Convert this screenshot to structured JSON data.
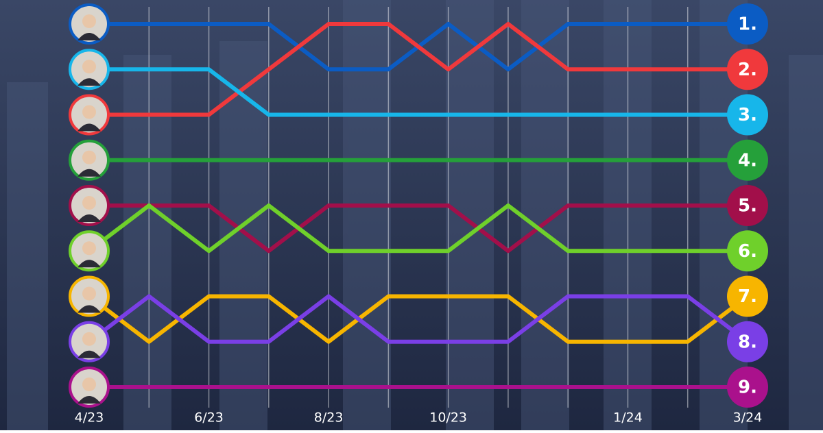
{
  "chart_data": {
    "type": "bump",
    "categories": [
      "4/23",
      null,
      "6/23",
      null,
      "8/23",
      null,
      "10/23",
      null,
      null,
      "1/24",
      null,
      "3/24"
    ],
    "ylim": [
      9,
      1
    ],
    "yticks": [
      {
        "value": 1,
        "label": "1."
      },
      {
        "value": 2,
        "label": "2."
      },
      {
        "value": 3,
        "label": "3."
      },
      {
        "value": 4,
        "label": "4."
      },
      {
        "value": 5,
        "label": "5."
      },
      {
        "value": 6,
        "label": "6."
      },
      {
        "value": 7,
        "label": "7."
      },
      {
        "value": 8,
        "label": "8."
      },
      {
        "value": 9,
        "label": "9."
      }
    ],
    "grid": true,
    "series": [
      {
        "color": "#0b5cc4",
        "values": [
          1,
          1,
          1,
          1,
          2,
          2,
          1,
          2,
          1,
          1,
          1,
          1
        ]
      },
      {
        "color": "#f0393c",
        "values": [
          3,
          3,
          3,
          2,
          1,
          1,
          2,
          1,
          2,
          2,
          2,
          2
        ]
      },
      {
        "color": "#17b6ea",
        "values": [
          2,
          2,
          2,
          3,
          3,
          3,
          3,
          3,
          3,
          3,
          3,
          3
        ]
      },
      {
        "color": "#25a03a",
        "values": [
          4,
          4,
          4,
          4,
          4,
          4,
          4,
          4,
          4,
          4,
          4,
          4
        ]
      },
      {
        "color": "#a20f4a",
        "values": [
          5,
          5,
          5,
          6,
          5,
          5,
          5,
          6,
          5,
          5,
          5,
          5
        ]
      },
      {
        "color": "#6fd02b",
        "values": [
          6,
          5,
          6,
          5,
          6,
          6,
          6,
          5,
          6,
          6,
          6,
          6
        ]
      },
      {
        "color": "#f7b500",
        "values": [
          7,
          8,
          7,
          7,
          8,
          7,
          7,
          7,
          8,
          8,
          8,
          7
        ]
      },
      {
        "color": "#7a3fe6",
        "values": [
          8,
          7,
          8,
          8,
          7,
          8,
          8,
          8,
          7,
          7,
          7,
          8
        ]
      },
      {
        "color": "#aa118c",
        "values": [
          9,
          9,
          9,
          9,
          9,
          9,
          9,
          9,
          9,
          9,
          9,
          9
        ]
      }
    ]
  }
}
